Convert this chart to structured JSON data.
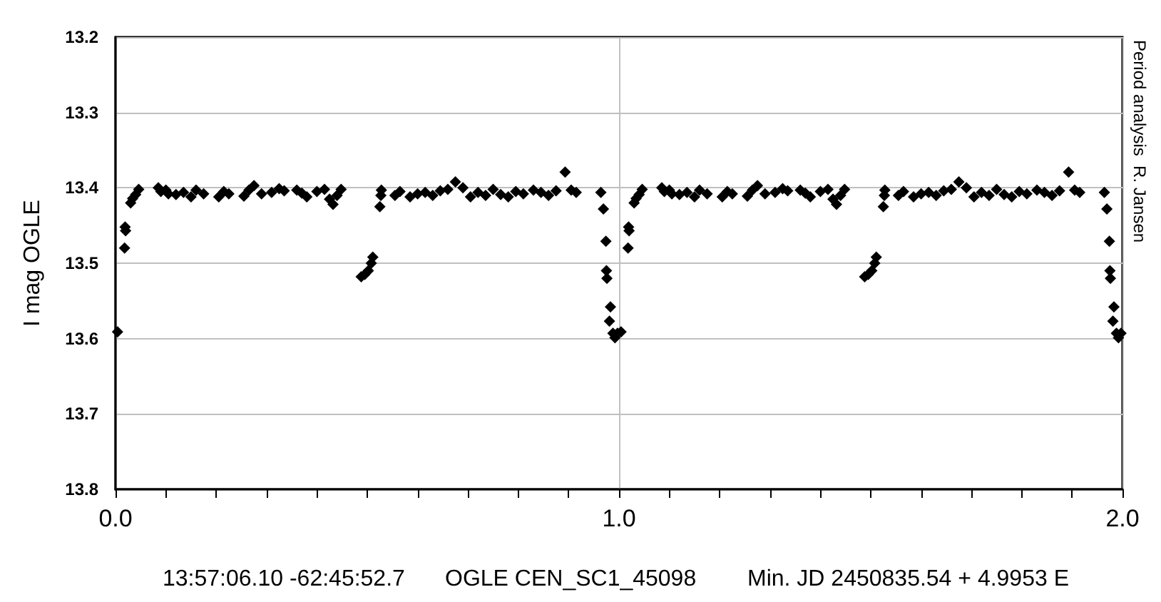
{
  "chart_data": {
    "type": "scatter",
    "ylabel": "I mag OGLE",
    "x": [
      0.004,
      0.018,
      0.019,
      0.02,
      0.03,
      0.034,
      0.04,
      0.046,
      0.085,
      0.09,
      0.1,
      0.105,
      0.12,
      0.135,
      0.15,
      0.16,
      0.175,
      0.205,
      0.215,
      0.225,
      0.255,
      0.265,
      0.275,
      0.29,
      0.31,
      0.325,
      0.335,
      0.36,
      0.37,
      0.38,
      0.4,
      0.415,
      0.425,
      0.432,
      0.44,
      0.448,
      0.488,
      0.495,
      0.502,
      0.508,
      0.511,
      0.525,
      0.527,
      0.528,
      0.555,
      0.565,
      0.585,
      0.6,
      0.615,
      0.63,
      0.645,
      0.66,
      0.675,
      0.69,
      0.705,
      0.72,
      0.735,
      0.75,
      0.765,
      0.78,
      0.795,
      0.81,
      0.83,
      0.845,
      0.86,
      0.875,
      0.893,
      0.905,
      0.915,
      0.964,
      0.969,
      0.974,
      0.975,
      0.976,
      0.981,
      0.983,
      0.988,
      0.992,
      0.997,
      1.004,
      1.018,
      1.019,
      1.02,
      1.03,
      1.034,
      1.04,
      1.046,
      1.085,
      1.09,
      1.1,
      1.105,
      1.12,
      1.135,
      1.15,
      1.16,
      1.175,
      1.205,
      1.215,
      1.225,
      1.255,
      1.265,
      1.275,
      1.29,
      1.31,
      1.325,
      1.335,
      1.36,
      1.37,
      1.38,
      1.4,
      1.415,
      1.425,
      1.432,
      1.44,
      1.448,
      1.488,
      1.495,
      1.502,
      1.508,
      1.511,
      1.525,
      1.527,
      1.528,
      1.555,
      1.565,
      1.585,
      1.6,
      1.615,
      1.63,
      1.645,
      1.66,
      1.675,
      1.69,
      1.705,
      1.72,
      1.735,
      1.75,
      1.765,
      1.78,
      1.795,
      1.81,
      1.83,
      1.845,
      1.86,
      1.875,
      1.893,
      1.905,
      1.915,
      1.964,
      1.969,
      1.974,
      1.975,
      1.976,
      1.981,
      1.983,
      1.988,
      1.992,
      1.997
    ],
    "series": [
      {
        "color": "#000000",
        "values": [
          13.591,
          13.48,
          13.452,
          13.457,
          13.42,
          13.414,
          13.409,
          13.402,
          13.4,
          13.405,
          13.403,
          13.408,
          13.409,
          13.406,
          13.412,
          13.403,
          13.408,
          13.412,
          13.405,
          13.408,
          13.411,
          13.403,
          13.397,
          13.408,
          13.406,
          13.401,
          13.404,
          13.403,
          13.407,
          13.412,
          13.405,
          13.402,
          13.415,
          13.422,
          13.41,
          13.402,
          13.518,
          13.515,
          13.51,
          13.5,
          13.492,
          13.425,
          13.41,
          13.403,
          13.41,
          13.405,
          13.412,
          13.408,
          13.406,
          13.41,
          13.404,
          13.402,
          13.392,
          13.4,
          13.412,
          13.406,
          13.41,
          13.402,
          13.409,
          13.412,
          13.405,
          13.408,
          13.403,
          13.406,
          13.41,
          13.404,
          13.379,
          13.403,
          13.406,
          13.406,
          13.428,
          13.471,
          13.51,
          13.52,
          13.577,
          13.558,
          13.593,
          13.599,
          13.593,
          13.591,
          13.48,
          13.452,
          13.457,
          13.42,
          13.414,
          13.409,
          13.402,
          13.4,
          13.405,
          13.403,
          13.408,
          13.409,
          13.406,
          13.412,
          13.403,
          13.408,
          13.412,
          13.405,
          13.408,
          13.411,
          13.403,
          13.397,
          13.408,
          13.406,
          13.401,
          13.404,
          13.403,
          13.407,
          13.412,
          13.405,
          13.402,
          13.415,
          13.422,
          13.41,
          13.402,
          13.518,
          13.515,
          13.51,
          13.5,
          13.492,
          13.425,
          13.41,
          13.403,
          13.41,
          13.405,
          13.412,
          13.408,
          13.406,
          13.41,
          13.404,
          13.402,
          13.392,
          13.4,
          13.412,
          13.406,
          13.41,
          13.402,
          13.409,
          13.412,
          13.405,
          13.408,
          13.403,
          13.406,
          13.41,
          13.404,
          13.379,
          13.403,
          13.406,
          13.406,
          13.428,
          13.471,
          13.51,
          13.52,
          13.577,
          13.558,
          13.593,
          13.599,
          13.593
        ]
      }
    ],
    "xlim": [
      0,
      2
    ],
    "xticks": [
      {
        "value": 0,
        "label": "0.0"
      },
      {
        "value": 0.1,
        "label": null
      },
      {
        "value": 0.2,
        "label": null
      },
      {
        "value": 0.3,
        "label": null
      },
      {
        "value": 0.4,
        "label": null
      },
      {
        "value": 0.5,
        "label": null
      },
      {
        "value": 0.6,
        "label": null
      },
      {
        "value": 0.7,
        "label": null
      },
      {
        "value": 0.8,
        "label": null
      },
      {
        "value": 0.9,
        "label": null
      },
      {
        "value": 1,
        "label": "1.0"
      },
      {
        "value": 1.1,
        "label": null
      },
      {
        "value": 1.2,
        "label": null
      },
      {
        "value": 1.3,
        "label": null
      },
      {
        "value": 1.4,
        "label": null
      },
      {
        "value": 1.5,
        "label": null
      },
      {
        "value": 1.6,
        "label": null
      },
      {
        "value": 1.7,
        "label": null
      },
      {
        "value": 1.8,
        "label": null
      },
      {
        "value": 1.9,
        "label": null
      },
      {
        "value": 2,
        "label": "2.0"
      }
    ],
    "ylim": [
      13.8,
      13.2
    ],
    "yticks": [
      13.2,
      13.3,
      13.4,
      13.5,
      13.6,
      13.7,
      13.8
    ],
    "grid": true,
    "marker": "diamond",
    "annotations": [
      "13:57:06.10 -62:45:52.7",
      "OGLE CEN_SC1_45098",
      "Min. JD 2450835.54 + 4.9953 E",
      "Period analysis  R. Jansen"
    ]
  }
}
